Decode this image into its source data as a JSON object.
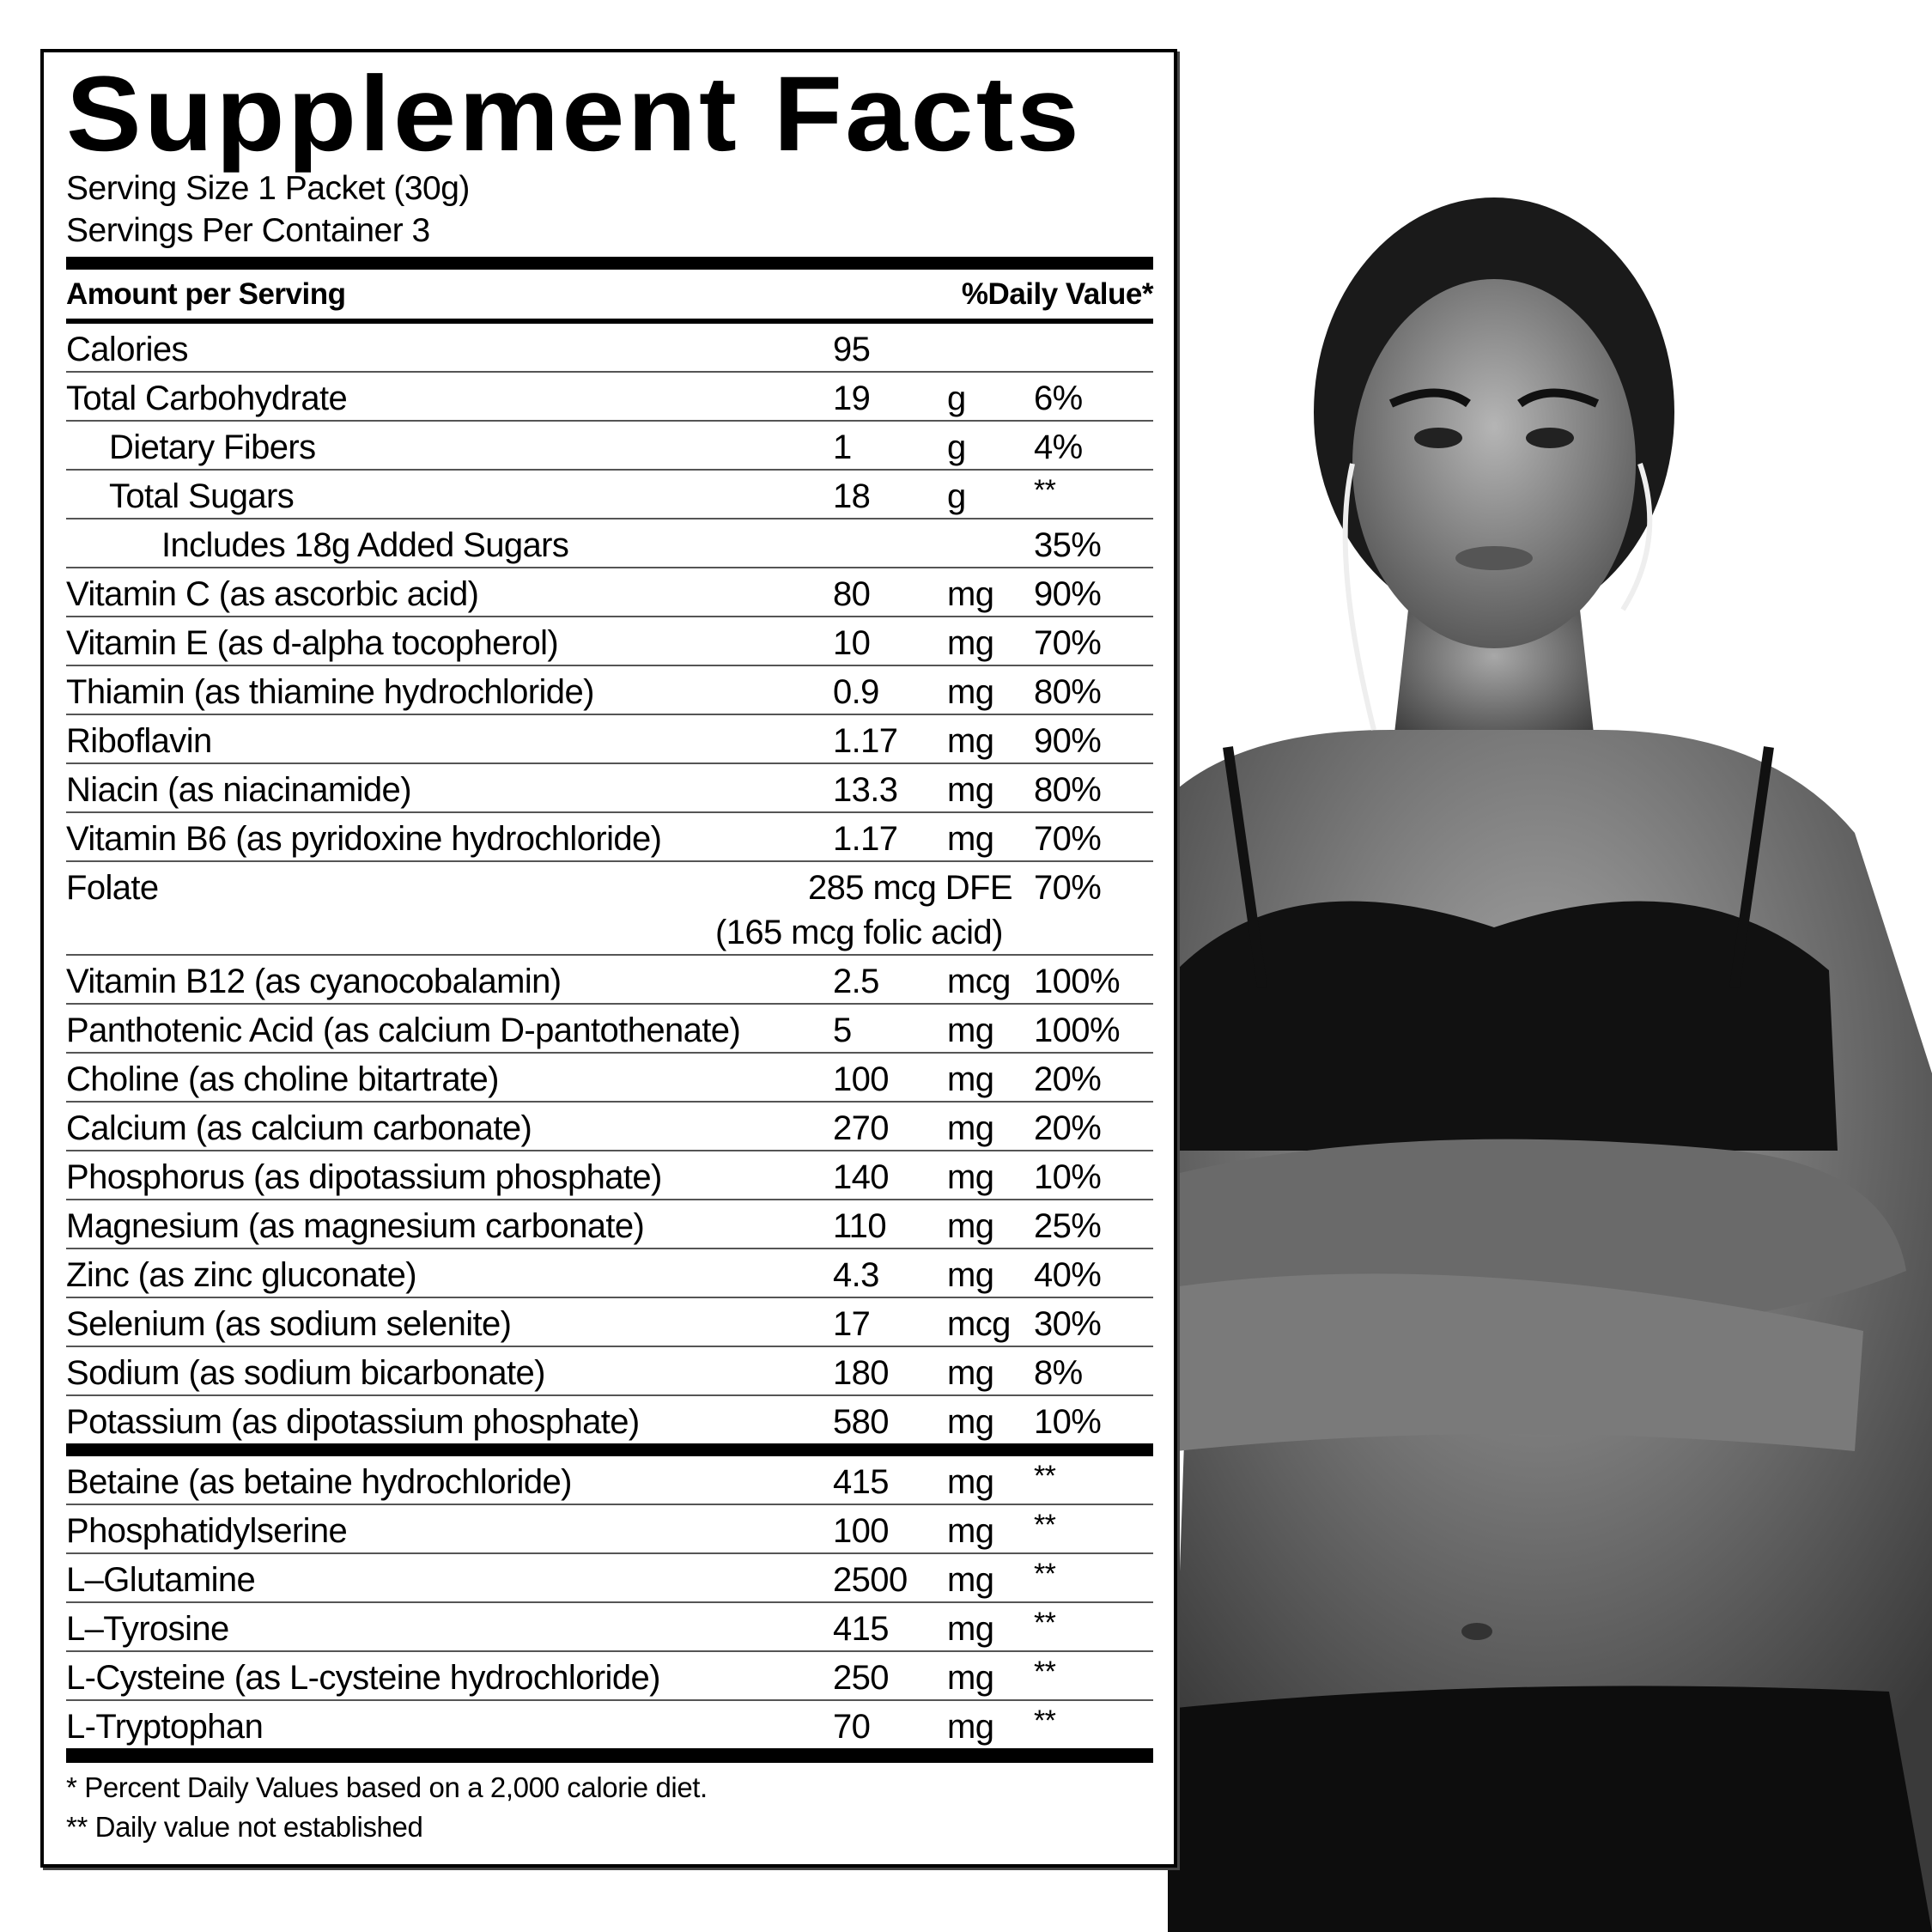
{
  "title": "Supplement Facts",
  "serving_size": "Serving Size 1 Packet (30g)",
  "servings_per_container": "Servings Per Container 3",
  "header": {
    "amount": "Amount per Serving",
    "daily_value": "%Daily Value*"
  },
  "nutrients": [
    {
      "name": "Calories",
      "amount": "95",
      "unit": "",
      "dv": "",
      "indent": 0
    },
    {
      "name": "Total Carbohydrate",
      "amount": "19",
      "unit": "g",
      "dv": "6%",
      "indent": 0
    },
    {
      "name": "Dietary Fibers",
      "amount": "1",
      "unit": "g",
      "dv": "4%",
      "indent": 1
    },
    {
      "name": "Total Sugars",
      "amount": "18",
      "unit": "g",
      "dv": "**",
      "indent": 1
    },
    {
      "name": "Includes 18g Added Sugars",
      "amount": "",
      "unit": "",
      "dv": "35%",
      "indent": 2
    },
    {
      "name": "Vitamin C (as ascorbic acid)",
      "amount": "80",
      "unit": "mg",
      "dv": "90%",
      "indent": 0
    },
    {
      "name": "Vitamin E (as d-alpha tocopherol)",
      "amount": "10",
      "unit": "mg",
      "dv": "70%",
      "indent": 0
    },
    {
      "name": "Thiamin (as thiamine hydrochloride)",
      "amount": "0.9",
      "unit": "mg",
      "dv": "80%",
      "indent": 0
    },
    {
      "name": "Riboflavin",
      "amount": "1.17",
      "unit": "mg",
      "dv": "90%",
      "indent": 0
    },
    {
      "name": "Niacin (as niacinamide)",
      "amount": "13.3",
      "unit": "mg",
      "dv": "80%",
      "indent": 0
    },
    {
      "name": "Vitamin B6 (as pyridoxine hydrochloride)",
      "amount": "1.17",
      "unit": "mg",
      "dv": "70%",
      "indent": 0
    }
  ],
  "folate": {
    "name": "Folate",
    "amount": "285 mcg DFE",
    "dv": "70%",
    "note": "(165 mcg folic acid)"
  },
  "nutrients2": [
    {
      "name": "Vitamin B12 (as cyanocobalamin)",
      "amount": "2.5",
      "unit": "mcg",
      "dv": "100%"
    },
    {
      "name": "Panthotenic Acid (as calcium D-pantothenate)",
      "amount": "5",
      "unit": "mg",
      "dv": "100%"
    },
    {
      "name": "Choline (as choline bitartrate)",
      "amount": "100",
      "unit": "mg",
      "dv": "20%"
    },
    {
      "name": "Calcium (as calcium carbonate)",
      "amount": "270",
      "unit": "mg",
      "dv": "20%"
    },
    {
      "name": "Phosphorus (as dipotassium phosphate)",
      "amount": "140",
      "unit": "mg",
      "dv": "10%"
    },
    {
      "name": "Magnesium (as magnesium carbonate)",
      "amount": "110",
      "unit": "mg",
      "dv": "25%"
    },
    {
      "name": "Zinc (as zinc gluconate)",
      "amount": "4.3",
      "unit": "mg",
      "dv": "40%"
    },
    {
      "name": "Selenium (as sodium selenite)",
      "amount": "17",
      "unit": "mcg",
      "dv": "30%"
    },
    {
      "name": "Sodium (as sodium bicarbonate)",
      "amount": "180",
      "unit": "mg",
      "dv": "8%"
    },
    {
      "name": "Potassium (as dipotassium phosphate)",
      "amount": "580",
      "unit": "mg",
      "dv": "10%"
    }
  ],
  "other_ingredients": [
    {
      "name": "Betaine (as betaine hydrochloride)",
      "amount": "415",
      "unit": "mg",
      "dv": "**"
    },
    {
      "name": "Phosphatidylserine",
      "amount": "100",
      "unit": "mg",
      "dv": "**"
    },
    {
      "name": "L–Glutamine",
      "amount": "2500",
      "unit": "mg",
      "dv": "**"
    },
    {
      "name": "L–Tyrosine",
      "amount": "415",
      "unit": "mg",
      "dv": "**"
    },
    {
      "name": "L-Cysteine (as L-cysteine hydrochloride)",
      "amount": "250",
      "unit": "mg",
      "dv": "**"
    },
    {
      "name": "L-Tryptophan",
      "amount": "70",
      "unit": "mg",
      "dv": "**"
    }
  ],
  "footnotes": [
    "* Percent Daily Values based on a 2,000 calorie diet.",
    "** Daily value not established"
  ],
  "colors": {
    "text": "#000000",
    "background": "#ffffff",
    "rule": "#555555"
  }
}
